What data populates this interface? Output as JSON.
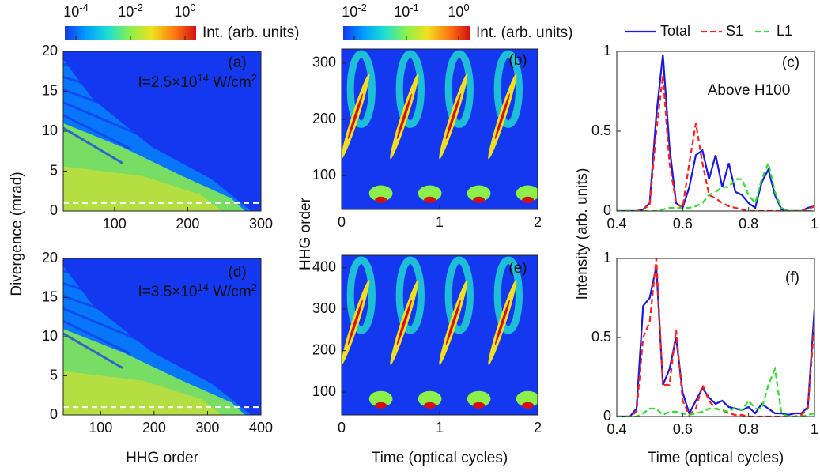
{
  "colormap": [
    "#1438f0",
    "#00a0ff",
    "#20e0d0",
    "#8cf04a",
    "#f0e020",
    "#ff7a10",
    "#d41010"
  ],
  "chart_data": [
    {
      "type": "heatmap",
      "label": "(a)",
      "ylabel": "Divergence (mrad)",
      "annotation": [
        {
          "text": "I=2.5×10"
        },
        {
          "sup": "14"
        },
        {
          "text": " W/cm"
        },
        {
          "sup": "2"
        }
      ],
      "xlim": [
        30,
        300
      ],
      "xticks": [
        100,
        200,
        300
      ],
      "ylim": [
        0,
        20
      ],
      "yticks": [
        0,
        5,
        10,
        15,
        20
      ],
      "reference_line": 1,
      "colorbar": {
        "label": "Int. (arb. units)",
        "clim": [
          0.0001,
          1
        ],
        "log": true,
        "ticks": [
          {
            "value": 0.0001,
            "label": "10",
            "exponent": "-4"
          },
          {
            "value": 0.01,
            "label": "10",
            "exponent": "-2"
          },
          {
            "value": 1,
            "label": "10",
            "exponent": "0"
          }
        ]
      }
    },
    {
      "type": "heatmap",
      "label": "(b)",
      "ylabel": "HHG order",
      "xlim": [
        0,
        2
      ],
      "xticks": [
        0,
        1,
        2
      ],
      "ylim": [
        40,
        325
      ],
      "yticks": [
        100,
        200,
        300
      ],
      "colorbar": {
        "label": "Int. (arb. units)",
        "clim": [
          0.01,
          1
        ],
        "log": true,
        "ticks": [
          {
            "value": 0.01,
            "label": "10",
            "exponent": "-2"
          },
          {
            "value": 0.1,
            "label": "10",
            "exponent": "-1"
          },
          {
            "value": 1,
            "label": "10",
            "exponent": "0"
          }
        ]
      }
    },
    {
      "type": "line",
      "label": "(c)",
      "ylabel": "Intensity (arb. units)",
      "annotation": [
        {
          "text": "Above H100"
        }
      ],
      "xlim": [
        0.4,
        1
      ],
      "xticks": [
        0.4,
        0.6,
        0.8,
        1
      ],
      "ylim": [
        0,
        1
      ],
      "yticks": [
        0,
        0.5,
        1
      ],
      "x": [
        0.4,
        0.42,
        0.44,
        0.46,
        0.48,
        0.5,
        0.52,
        0.54,
        0.56,
        0.58,
        0.6,
        0.62,
        0.64,
        0.66,
        0.68,
        0.7,
        0.72,
        0.74,
        0.76,
        0.78,
        0.8,
        0.82,
        0.84,
        0.86,
        0.88,
        0.9,
        0.92,
        0.94,
        0.96,
        0.98,
        1
      ],
      "series": [
        {
          "name": "Total",
          "color": "#1a1adc",
          "style": "solid",
          "values": [
            0,
            0,
            0,
            0,
            0.01,
            0.05,
            0.6,
            0.98,
            0.4,
            0.05,
            0.02,
            0.15,
            0.35,
            0.38,
            0.2,
            0.35,
            0.15,
            0.3,
            0.12,
            0.1,
            0.05,
            0.02,
            0.18,
            0.26,
            0.1,
            0.01,
            0,
            0,
            0,
            0.02,
            0.03
          ]
        },
        {
          "name": "S1",
          "color": "#ff2020",
          "style": "dashed",
          "values": [
            0,
            0,
            0,
            0,
            0.01,
            0.04,
            0.5,
            0.85,
            0.3,
            0.05,
            0.02,
            0.3,
            0.55,
            0.3,
            0.1,
            0.08,
            0.05,
            0.03,
            0.02,
            0.01,
            0,
            0,
            0,
            0,
            0,
            0,
            0,
            0,
            0,
            0.01,
            0.03
          ]
        },
        {
          "name": "L1",
          "color": "#30dd30",
          "style": "dashed",
          "values": [
            0,
            0,
            0,
            0,
            0,
            0,
            0,
            0.01,
            0.02,
            0.02,
            0.02,
            0.02,
            0.03,
            0.05,
            0.1,
            0.12,
            0.15,
            0.15,
            0.2,
            0.2,
            0.1,
            0.05,
            0.2,
            0.3,
            0.12,
            0.02,
            0,
            0,
            0,
            0,
            0
          ]
        }
      ]
    },
    {
      "type": "heatmap",
      "label": "(d)",
      "xlabel": "HHG order",
      "annotation": [
        {
          "text": "I=3.5×10"
        },
        {
          "sup": "14"
        },
        {
          "text": " W/cm"
        },
        {
          "sup": "2"
        }
      ],
      "xlim": [
        30,
        400
      ],
      "xticks": [
        100,
        200,
        300,
        400
      ],
      "ylim": [
        0,
        20
      ],
      "yticks": [
        0,
        5,
        10,
        15,
        20
      ],
      "reference_line": 1
    },
    {
      "type": "heatmap",
      "label": "(e)",
      "xlabel": "Time (optical cycles)",
      "xlim": [
        0,
        2
      ],
      "xticks": [
        0,
        1,
        2
      ],
      "ylim": [
        45,
        430
      ],
      "yticks": [
        100,
        200,
        300,
        400
      ]
    },
    {
      "type": "line",
      "label": "(f)",
      "xlabel": "Time (optical cycles)",
      "xlim": [
        0.4,
        1
      ],
      "xticks": [
        0.4,
        0.6,
        0.8,
        1
      ],
      "ylim": [
        0,
        1
      ],
      "yticks": [
        0,
        0.5,
        1
      ],
      "x": [
        0.4,
        0.42,
        0.44,
        0.46,
        0.48,
        0.5,
        0.52,
        0.54,
        0.56,
        0.58,
        0.6,
        0.62,
        0.64,
        0.66,
        0.68,
        0.7,
        0.72,
        0.74,
        0.76,
        0.78,
        0.8,
        0.82,
        0.84,
        0.86,
        0.88,
        0.9,
        0.92,
        0.94,
        0.96,
        0.98,
        1
      ],
      "series": [
        {
          "name": "Total",
          "color": "#1a1adc",
          "style": "solid",
          "values": [
            0,
            0,
            0,
            0.05,
            0.7,
            0.75,
            0.95,
            0.2,
            0.3,
            0.5,
            0.15,
            0.02,
            0.1,
            0.18,
            0.12,
            0.08,
            0.1,
            0.06,
            0.05,
            0.04,
            0.06,
            0.02,
            0.08,
            0.05,
            0.02,
            0.02,
            0.01,
            0.02,
            0.02,
            0.06,
            0.68
          ]
        },
        {
          "name": "S1",
          "color": "#ff2020",
          "style": "dashed",
          "values": [
            0,
            0,
            0,
            0.03,
            0.5,
            0.6,
            1,
            0.2,
            0.2,
            0.55,
            0.1,
            0.01,
            0.05,
            0.2,
            0.1,
            0.05,
            0.04,
            0.02,
            0.01,
            0.01,
            0,
            0,
            0,
            0,
            0,
            0,
            0,
            0,
            0.01,
            0.05,
            0.6
          ]
        },
        {
          "name": "L1",
          "color": "#30dd30",
          "style": "dashed",
          "values": [
            0,
            0,
            0,
            0,
            0.02,
            0.05,
            0.05,
            0.01,
            0.03,
            0.03,
            0.02,
            0.01,
            0.02,
            0.03,
            0.05,
            0.05,
            0.04,
            0.03,
            0.06,
            0.04,
            0.1,
            0.05,
            0.05,
            0.2,
            0.3,
            0.02,
            0,
            0,
            0,
            0.01,
            0.02
          ]
        }
      ]
    }
  ]
}
